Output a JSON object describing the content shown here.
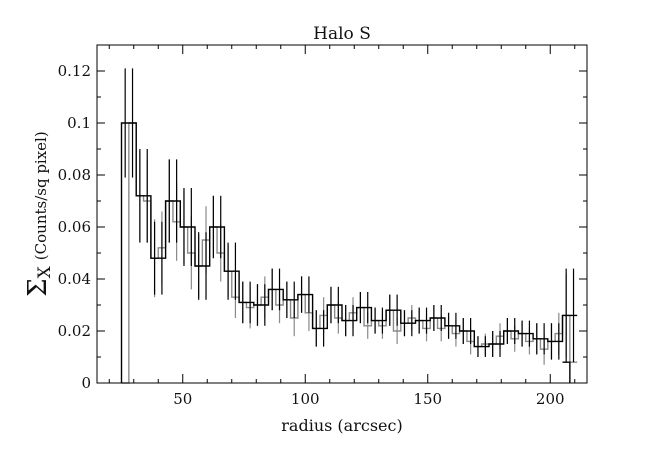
{
  "chart_data": {
    "type": "line",
    "style": "step-histogram-with-error-bars",
    "title": "Halo S",
    "xlabel": "radius (arcsec)",
    "ylabel_symbol": "Σ",
    "ylabel_subscript": "X",
    "ylabel_units": "(Counts/sq pixel)",
    "xlim": [
      15,
      215
    ],
    "ylim": [
      0,
      0.13
    ],
    "xticks": [
      50,
      100,
      150,
      200
    ],
    "yticks": [
      0,
      0.02,
      0.04,
      0.06,
      0.08,
      0.1,
      0.12
    ],
    "ytick_labels": [
      "0",
      "0.02",
      "0.04",
      "0.06",
      "0.08",
      "0.1",
      "0.12"
    ],
    "grid": false,
    "series": [
      {
        "color": "#000000",
        "edges": [
          25,
          28,
          31,
          34,
          37,
          40,
          43,
          46,
          49,
          52,
          55,
          58,
          61,
          64,
          67,
          70,
          73,
          76,
          79,
          82,
          85,
          88,
          91,
          94,
          97,
          100,
          103,
          106,
          109,
          112,
          115,
          118,
          121,
          124,
          127,
          130,
          133,
          136,
          139,
          142,
          145,
          148,
          151,
          154,
          157,
          160,
          163,
          166,
          169,
          172,
          175,
          178,
          181,
          184,
          187,
          190,
          193,
          196,
          199,
          202,
          205,
          208
        ],
        "values": [
          0.1,
          0.1,
          0.072,
          0.072,
          0.048,
          0.048,
          0.07,
          0.07,
          0.06,
          0.06,
          0.045,
          0.045,
          0.06,
          0.06,
          0.043,
          0.043,
          0.031,
          0.031,
          0.03,
          0.03,
          0.036,
          0.036,
          0.032,
          0.032,
          0.034,
          0.034,
          0.021,
          0.021,
          0.03,
          0.03,
          0.024,
          0.024,
          0.029,
          0.029,
          0.024,
          0.024,
          0.028,
          0.028,
          0.023,
          0.023,
          0.024,
          0.024,
          0.025,
          0.025,
          0.022,
          0.022,
          0.02,
          0.02,
          0.014,
          0.014,
          0.015,
          0.015,
          0.02,
          0.02,
          0.019,
          0.019,
          0.017,
          0.017,
          0.016,
          0.016,
          0.026,
          0.026
        ],
        "errors": [
          0.021,
          0.021,
          0.018,
          0.018,
          0.014,
          0.014,
          0.016,
          0.016,
          0.015,
          0.015,
          0.013,
          0.013,
          0.012,
          0.012,
          0.011,
          0.011,
          0.008,
          0.008,
          0.008,
          0.008,
          0.008,
          0.008,
          0.007,
          0.007,
          0.007,
          0.007,
          0.007,
          0.007,
          0.007,
          0.007,
          0.006,
          0.006,
          0.006,
          0.006,
          0.005,
          0.005,
          0.006,
          0.006,
          0.005,
          0.005,
          0.005,
          0.005,
          0.005,
          0.005,
          0.005,
          0.005,
          0.005,
          0.005,
          0.004,
          0.004,
          0.005,
          0.005,
          0.005,
          0.005,
          0.005,
          0.005,
          0.006,
          0.006,
          0.007,
          0.007,
          0.018,
          0.018
        ]
      },
      {
        "color": "#8a8a8a",
        "edges": [
          25,
          28,
          31,
          34,
          37,
          40,
          43,
          46,
          49,
          52,
          55,
          58,
          61,
          64,
          67,
          70,
          73,
          76,
          79,
          82,
          85,
          88,
          91,
          94,
          97,
          100,
          103,
          106,
          109,
          112,
          115,
          118,
          121,
          124,
          127,
          130,
          133,
          136,
          139,
          142,
          145,
          148,
          151,
          154,
          157,
          160,
          163,
          166,
          169,
          172,
          175,
          178,
          181,
          184,
          187,
          190,
          193,
          196,
          199,
          202,
          205,
          208
        ],
        "values": [
          0.0,
          0.1,
          0.072,
          0.07,
          0.048,
          0.052,
          0.07,
          0.062,
          0.06,
          0.05,
          0.045,
          0.055,
          0.06,
          0.05,
          0.043,
          0.033,
          0.031,
          0.029,
          0.03,
          0.033,
          0.036,
          0.03,
          0.032,
          0.025,
          0.034,
          0.027,
          0.021,
          0.026,
          0.03,
          0.025,
          0.024,
          0.027,
          0.029,
          0.022,
          0.024,
          0.022,
          0.028,
          0.02,
          0.023,
          0.025,
          0.024,
          0.021,
          0.025,
          0.021,
          0.022,
          0.019,
          0.02,
          0.016,
          0.014,
          0.015,
          0.015,
          0.018,
          0.02,
          0.017,
          0.019,
          0.016,
          0.017,
          0.013,
          0.016,
          0.019,
          0.026,
          0.008
        ],
        "errors": [
          0.0,
          0.0,
          0.017,
          0.016,
          0.015,
          0.014,
          0.016,
          0.015,
          0.014,
          0.014,
          0.012,
          0.013,
          0.012,
          0.011,
          0.01,
          0.008,
          0.008,
          0.008,
          0.008,
          0.008,
          0.008,
          0.007,
          0.007,
          0.007,
          0.007,
          0.007,
          0.007,
          0.007,
          0.007,
          0.006,
          0.006,
          0.006,
          0.006,
          0.005,
          0.005,
          0.005,
          0.006,
          0.005,
          0.005,
          0.005,
          0.005,
          0.005,
          0.005,
          0.005,
          0.005,
          0.005,
          0.005,
          0.005,
          0.004,
          0.004,
          0.005,
          0.005,
          0.005,
          0.005,
          0.005,
          0.005,
          0.006,
          0.006,
          0.007,
          0.008,
          0.016,
          0.0
        ]
      }
    ],
    "tail": {
      "color": "#000000",
      "x_drop": 205,
      "x_end": 208,
      "value": 0.008
    }
  }
}
